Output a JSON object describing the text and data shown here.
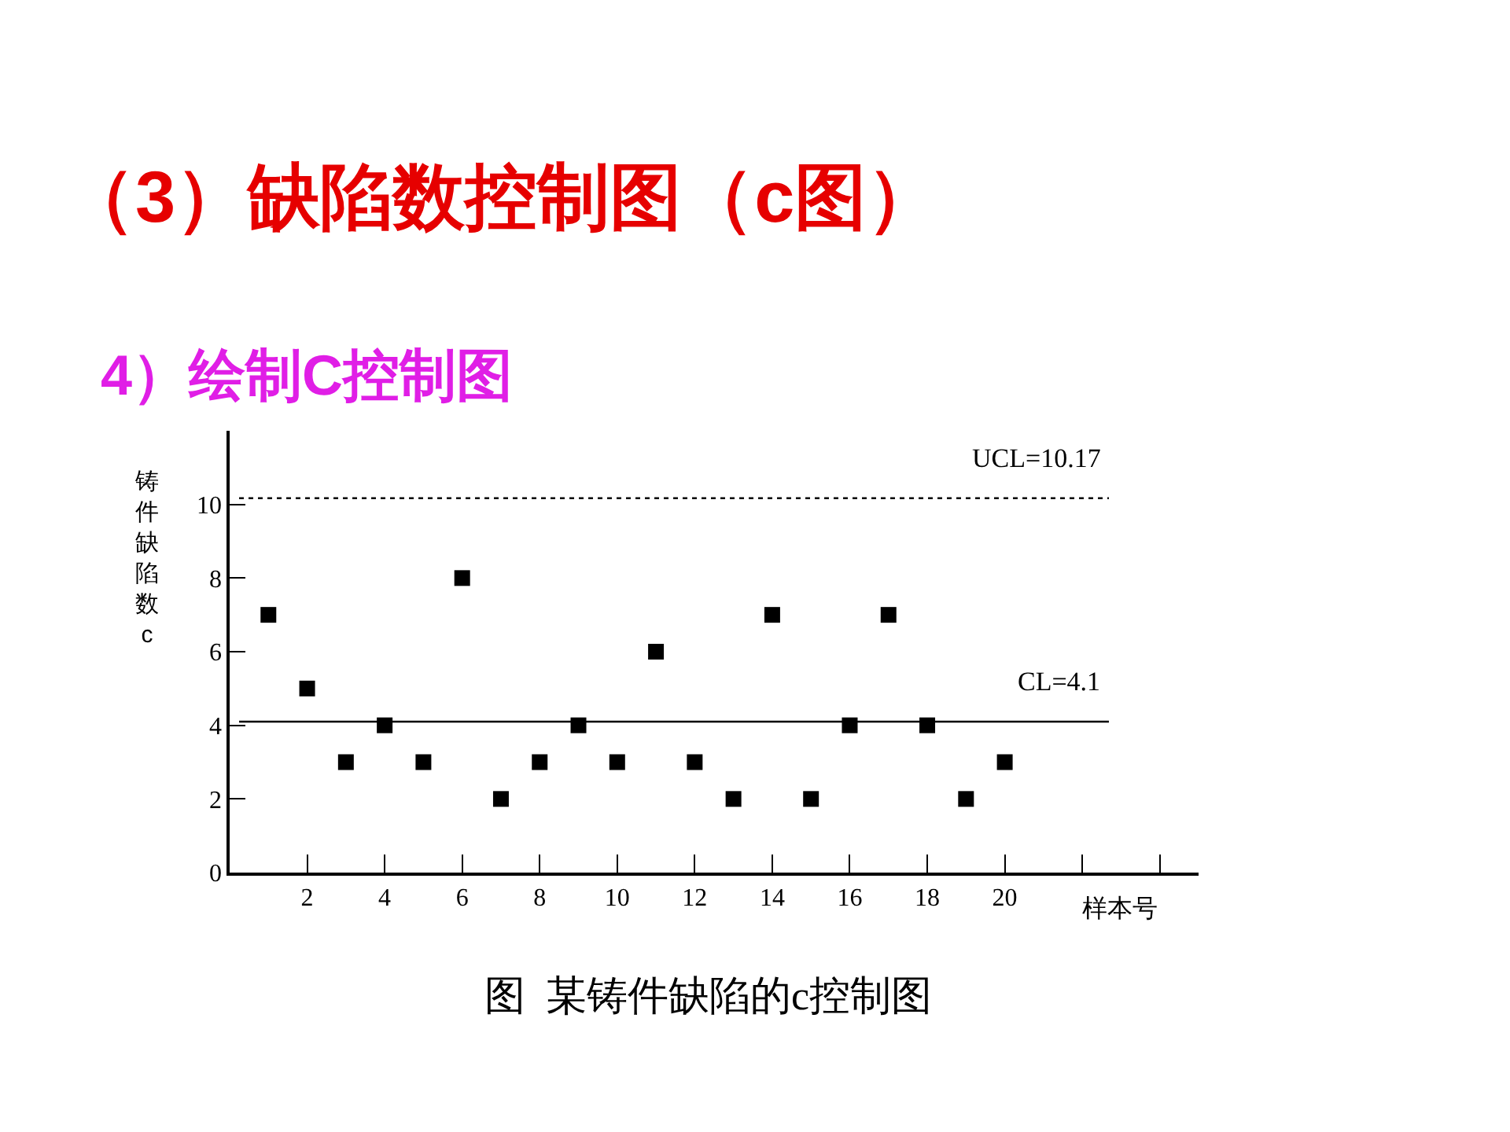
{
  "chart_data": {
    "type": "scatter",
    "title": "（3）缺陷数控制图（c图）",
    "subtitle": "4）绘制C控制图",
    "xlabel": "样本号",
    "ylabel": "铸件缺陷数c",
    "annotations": [
      "图  某铸件缺陷的c控制图"
    ],
    "x": [
      1,
      2,
      3,
      4,
      5,
      6,
      7,
      8,
      9,
      10,
      11,
      12,
      13,
      14,
      15,
      16,
      17,
      18,
      19,
      20
    ],
    "series": [
      {
        "color": "#000000",
        "values": [
          7,
          5,
          3,
          4,
          3,
          8,
          2,
          3,
          4,
          3,
          6,
          3,
          2,
          7,
          2,
          4,
          7,
          4,
          2,
          3
        ]
      }
    ],
    "xlim": [
      0,
      25
    ],
    "xticks": [
      2,
      4,
      6,
      8,
      10,
      12,
      14,
      16,
      18,
      20,
      {
        "value": 22,
        "label": null
      },
      {
        "value": 24,
        "label": null
      }
    ],
    "ylim": [
      0,
      12
    ],
    "yticks": [
      0,
      2,
      4,
      6,
      8,
      10
    ],
    "ref_lines": [
      {
        "axis": "y",
        "value": 10.17,
        "label": "UCL=10.17",
        "line_style": "dotted",
        "color": "#000000"
      },
      {
        "axis": "y",
        "value": 4.1,
        "label": "CL=4.1",
        "line_style": "solid",
        "color": "#000000"
      }
    ],
    "marker": "square"
  }
}
